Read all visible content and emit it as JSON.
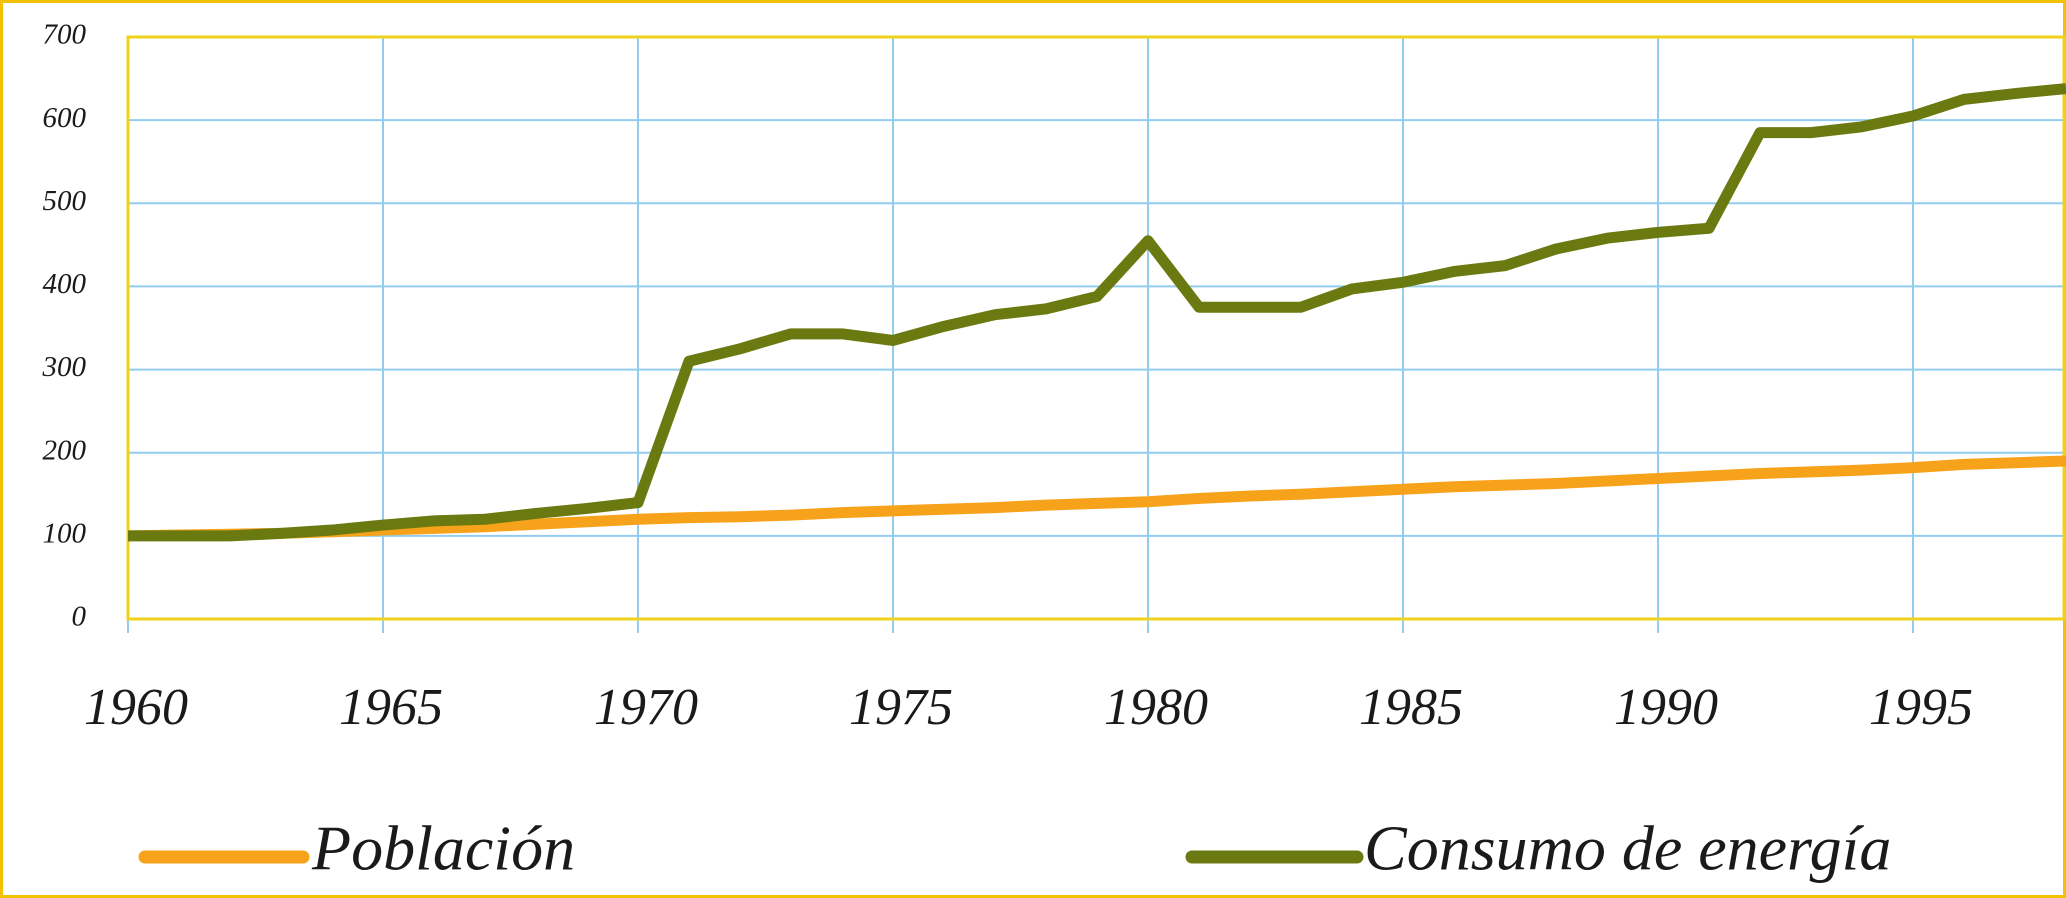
{
  "chart_data": {
    "type": "line",
    "x": [
      1960,
      1961,
      1962,
      1963,
      1964,
      1965,
      1966,
      1967,
      1968,
      1969,
      1970,
      1971,
      1972,
      1973,
      1974,
      1975,
      1976,
      1977,
      1978,
      1979,
      1980,
      1981,
      1982,
      1983,
      1984,
      1985,
      1986,
      1987,
      1988,
      1989,
      1990,
      1991,
      1992,
      1993,
      1994,
      1995,
      1996,
      1997,
      1998
    ],
    "series": [
      {
        "name": "Población",
        "color": "#f7a21b",
        "values": [
          100,
          101,
          102,
          103,
          105,
          107,
          109,
          111,
          114,
          117,
          120,
          122,
          123,
          125,
          128,
          130,
          132,
          134,
          137,
          139,
          141,
          145,
          148,
          150,
          153,
          156,
          159,
          161,
          163,
          166,
          169,
          172,
          175,
          177,
          179,
          182,
          186,
          188,
          190
        ]
      },
      {
        "name": "Consumo de energía",
        "color": "#6b7a10",
        "values": [
          100,
          100,
          100,
          103,
          107,
          113,
          118,
          120,
          127,
          133,
          140,
          310,
          325,
          343,
          343,
          335,
          352,
          366,
          373,
          388,
          455,
          375,
          375,
          375,
          397,
          405,
          418,
          425,
          445,
          458,
          465,
          470,
          585,
          585,
          592,
          605,
          625,
          632,
          638
        ]
      }
    ],
    "xlim": [
      1960,
      1998
    ],
    "xticks": [
      1960,
      1965,
      1970,
      1975,
      1980,
      1985,
      1990,
      1995
    ],
    "ylim": [
      0,
      700
    ],
    "yticks": [
      0,
      100,
      200,
      300,
      400,
      500,
      600,
      700
    ],
    "grid": true,
    "legend": "bottom"
  }
}
